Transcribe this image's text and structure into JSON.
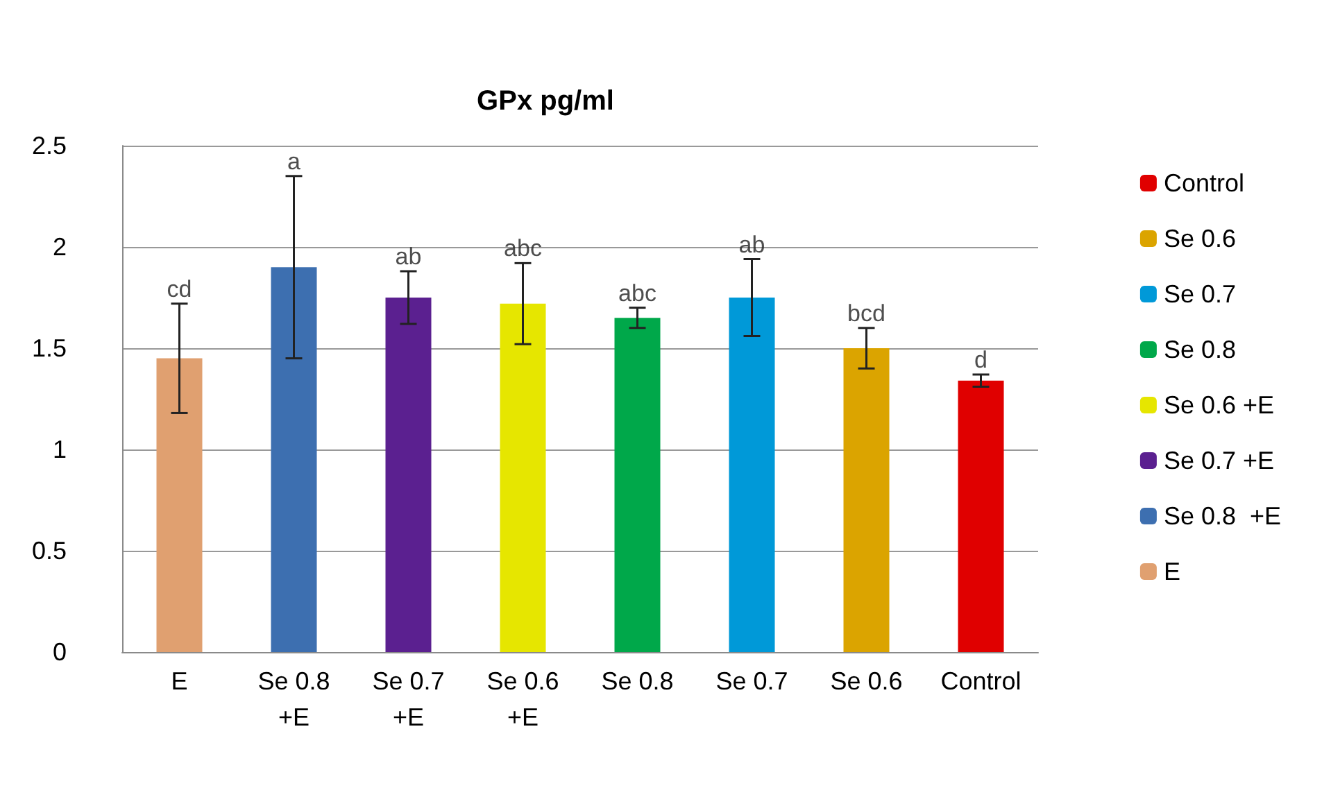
{
  "chart_data": {
    "type": "bar",
    "title": "GPx pg/ml",
    "categories": [
      "E",
      "Se 0.8\n+E",
      "Se 0.7\n+E",
      "Se 0.6\n+E",
      "Se 0.8",
      "Se 0.7",
      "Se 0.6",
      "Control"
    ],
    "stacked": true,
    "series": [
      {
        "name": "Control",
        "color": "#e00000",
        "values": [
          null,
          null,
          null,
          null,
          null,
          null,
          null,
          1.34
        ],
        "errors": [
          null,
          null,
          null,
          null,
          null,
          null,
          null,
          0.03
        ]
      },
      {
        "name": "Se 0.6",
        "color": "#dba400",
        "values": [
          null,
          null,
          null,
          null,
          null,
          null,
          1.5,
          null
        ],
        "errors": [
          null,
          null,
          null,
          null,
          null,
          null,
          0.1,
          null
        ]
      },
      {
        "name": "Se 0.7",
        "color": "#0099d8",
        "values": [
          null,
          null,
          null,
          null,
          null,
          1.75,
          null,
          null
        ],
        "errors": [
          null,
          null,
          null,
          null,
          null,
          0.19,
          null,
          null
        ]
      },
      {
        "name": "Se 0.8",
        "color": "#00a84a",
        "values": [
          null,
          null,
          null,
          null,
          1.65,
          null,
          null,
          null
        ],
        "errors": [
          null,
          null,
          null,
          null,
          0.05,
          null,
          null,
          null
        ]
      },
      {
        "name": "Se 0.6 +E",
        "color": "#e6e600",
        "values": [
          null,
          null,
          null,
          1.72,
          null,
          null,
          null,
          null
        ],
        "errors": [
          null,
          null,
          null,
          0.2,
          null,
          null,
          null,
          null
        ]
      },
      {
        "name": "Se 0.7 +E",
        "color": "#5b2090",
        "values": [
          null,
          null,
          1.75,
          null,
          null,
          null,
          null,
          null
        ],
        "errors": [
          null,
          null,
          0.13,
          null,
          null,
          null,
          null,
          null
        ]
      },
      {
        "name": "Se 0.8  +E",
        "color": "#3d6fb0",
        "values": [
          null,
          1.9,
          null,
          null,
          null,
          null,
          null,
          null
        ],
        "errors": [
          null,
          0.45,
          null,
          null,
          null,
          null,
          null,
          null
        ]
      },
      {
        "name": "E",
        "color": "#e0a070",
        "values": [
          1.45,
          null,
          null,
          null,
          null,
          null,
          null,
          null
        ],
        "errors": [
          0.27,
          null,
          null,
          null,
          null,
          null,
          null,
          null
        ]
      }
    ],
    "annotations": [
      {
        "text": "cd",
        "x": "E",
        "y": 1.72
      },
      {
        "text": "a",
        "x": "Se 0.8\n+E",
        "y": 2.35
      },
      {
        "text": "ab",
        "x": "Se 0.7\n+E",
        "y": 1.88
      },
      {
        "text": "abc",
        "x": "Se 0.6\n+E",
        "y": 1.92
      },
      {
        "text": "abc",
        "x": "Se 0.8",
        "y": 1.7
      },
      {
        "text": "ab",
        "x": "Se 0.7",
        "y": 1.94
      },
      {
        "text": "bcd",
        "x": "Se 0.6",
        "y": 1.6
      },
      {
        "text": "d",
        "x": "Control",
        "y": 1.37
      }
    ],
    "ylim": [
      0,
      2.5
    ],
    "yticks": [
      0,
      0.5,
      1,
      1.5,
      2,
      2.5
    ],
    "grid": "y",
    "legend": "right"
  }
}
